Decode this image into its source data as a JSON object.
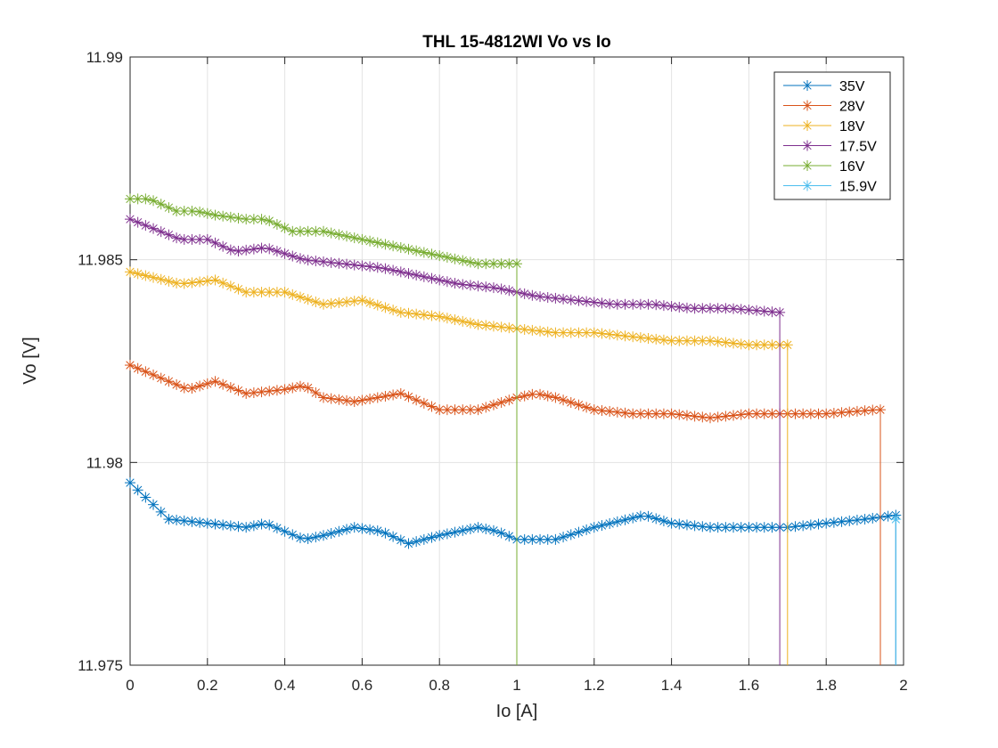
{
  "chart_data": {
    "type": "line",
    "title": "THL 15-4812WI Vo vs Io",
    "xlabel": "Io [A]",
    "ylabel": "Vo [V]",
    "xlim": [
      0,
      2
    ],
    "ylim": [
      11.975,
      11.99
    ],
    "xticks": [
      "0",
      "0.2",
      "0.4",
      "0.6",
      "0.8",
      "1",
      "1.2",
      "1.4",
      "1.6",
      "1.8",
      "2"
    ],
    "yticks": [
      "11.975",
      "11.98",
      "11.985",
      "11.99"
    ],
    "grid": true,
    "legend_position": "top-right",
    "series": [
      {
        "name": "35V",
        "color": "#0072BD",
        "x_end": 1.98,
        "drop_to": 11.975,
        "x": [
          0,
          0.1,
          0.2,
          0.3,
          0.35,
          0.45,
          0.5,
          0.58,
          0.65,
          0.72,
          0.8,
          0.9,
          0.95,
          1.0,
          1.1,
          1.2,
          1.33,
          1.4,
          1.5,
          1.6,
          1.7,
          1.8,
          1.9,
          1.98
        ],
        "y": [
          11.9795,
          11.9786,
          11.9785,
          11.9784,
          11.9785,
          11.9781,
          11.9782,
          11.9784,
          11.9783,
          11.978,
          11.9782,
          11.9784,
          11.9783,
          11.9781,
          11.9781,
          11.9784,
          11.9787,
          11.9785,
          11.9784,
          11.9784,
          11.9784,
          11.9785,
          11.9786,
          11.9787
        ]
      },
      {
        "name": "28V",
        "color": "#D95319",
        "x_end": 1.93,
        "drop_to": 11.975,
        "x": [
          0,
          0.15,
          0.22,
          0.3,
          0.4,
          0.45,
          0.5,
          0.58,
          0.7,
          0.8,
          0.9,
          1.0,
          1.05,
          1.1,
          1.2,
          1.3,
          1.4,
          1.5,
          1.6,
          1.7,
          1.8,
          1.93
        ],
        "y": [
          11.9824,
          11.9818,
          11.982,
          11.9817,
          11.9818,
          11.9819,
          11.9816,
          11.9815,
          11.9817,
          11.9813,
          11.9813,
          11.9816,
          11.9817,
          11.9816,
          11.9813,
          11.9812,
          11.9812,
          11.9811,
          11.9812,
          11.9812,
          11.9812,
          11.9813
        ]
      },
      {
        "name": "18V",
        "color": "#EDB120",
        "x_end": 1.7,
        "drop_to": 11.975,
        "x": [
          0,
          0.13,
          0.22,
          0.3,
          0.4,
          0.5,
          0.6,
          0.7,
          0.8,
          0.9,
          1.0,
          1.1,
          1.2,
          1.3,
          1.4,
          1.5,
          1.6,
          1.7
        ],
        "y": [
          11.9847,
          11.9844,
          11.9845,
          11.9842,
          11.9842,
          11.9839,
          11.984,
          11.9837,
          11.9836,
          11.9834,
          11.9833,
          11.9832,
          11.9832,
          11.9831,
          11.983,
          11.983,
          11.9829,
          11.9829
        ]
      },
      {
        "name": "17.5V",
        "color": "#7E2F8E",
        "x_end": 1.68,
        "drop_to": 11.975,
        "x": [
          0,
          0.13,
          0.2,
          0.27,
          0.35,
          0.45,
          0.55,
          0.65,
          0.75,
          0.85,
          0.95,
          1.05,
          1.15,
          1.25,
          1.35,
          1.45,
          1.55,
          1.68
        ],
        "y": [
          11.986,
          11.9855,
          11.9855,
          11.9852,
          11.9853,
          11.985,
          11.9849,
          11.9848,
          11.9846,
          11.9844,
          11.9843,
          11.9841,
          11.984,
          11.9839,
          11.9839,
          11.9838,
          11.9838,
          11.9837
        ]
      },
      {
        "name": "16V",
        "color": "#77AC30",
        "x_end": 1.0,
        "drop_to": 11.975,
        "x": [
          0,
          0.05,
          0.12,
          0.17,
          0.22,
          0.3,
          0.35,
          0.42,
          0.5,
          0.55,
          0.6,
          0.7,
          0.8,
          0.9,
          1.0
        ],
        "y": [
          11.9865,
          11.9865,
          11.9862,
          11.9862,
          11.9861,
          11.986,
          11.986,
          11.9857,
          11.9857,
          11.9856,
          11.9855,
          11.9853,
          11.9851,
          11.9849,
          11.9849
        ]
      },
      {
        "name": "15.9V",
        "color": "#4DBEEE",
        "x_end": 1.98,
        "drop_to": 11.975,
        "x": [
          1.98
        ],
        "y": [
          11.9786
        ]
      }
    ]
  }
}
